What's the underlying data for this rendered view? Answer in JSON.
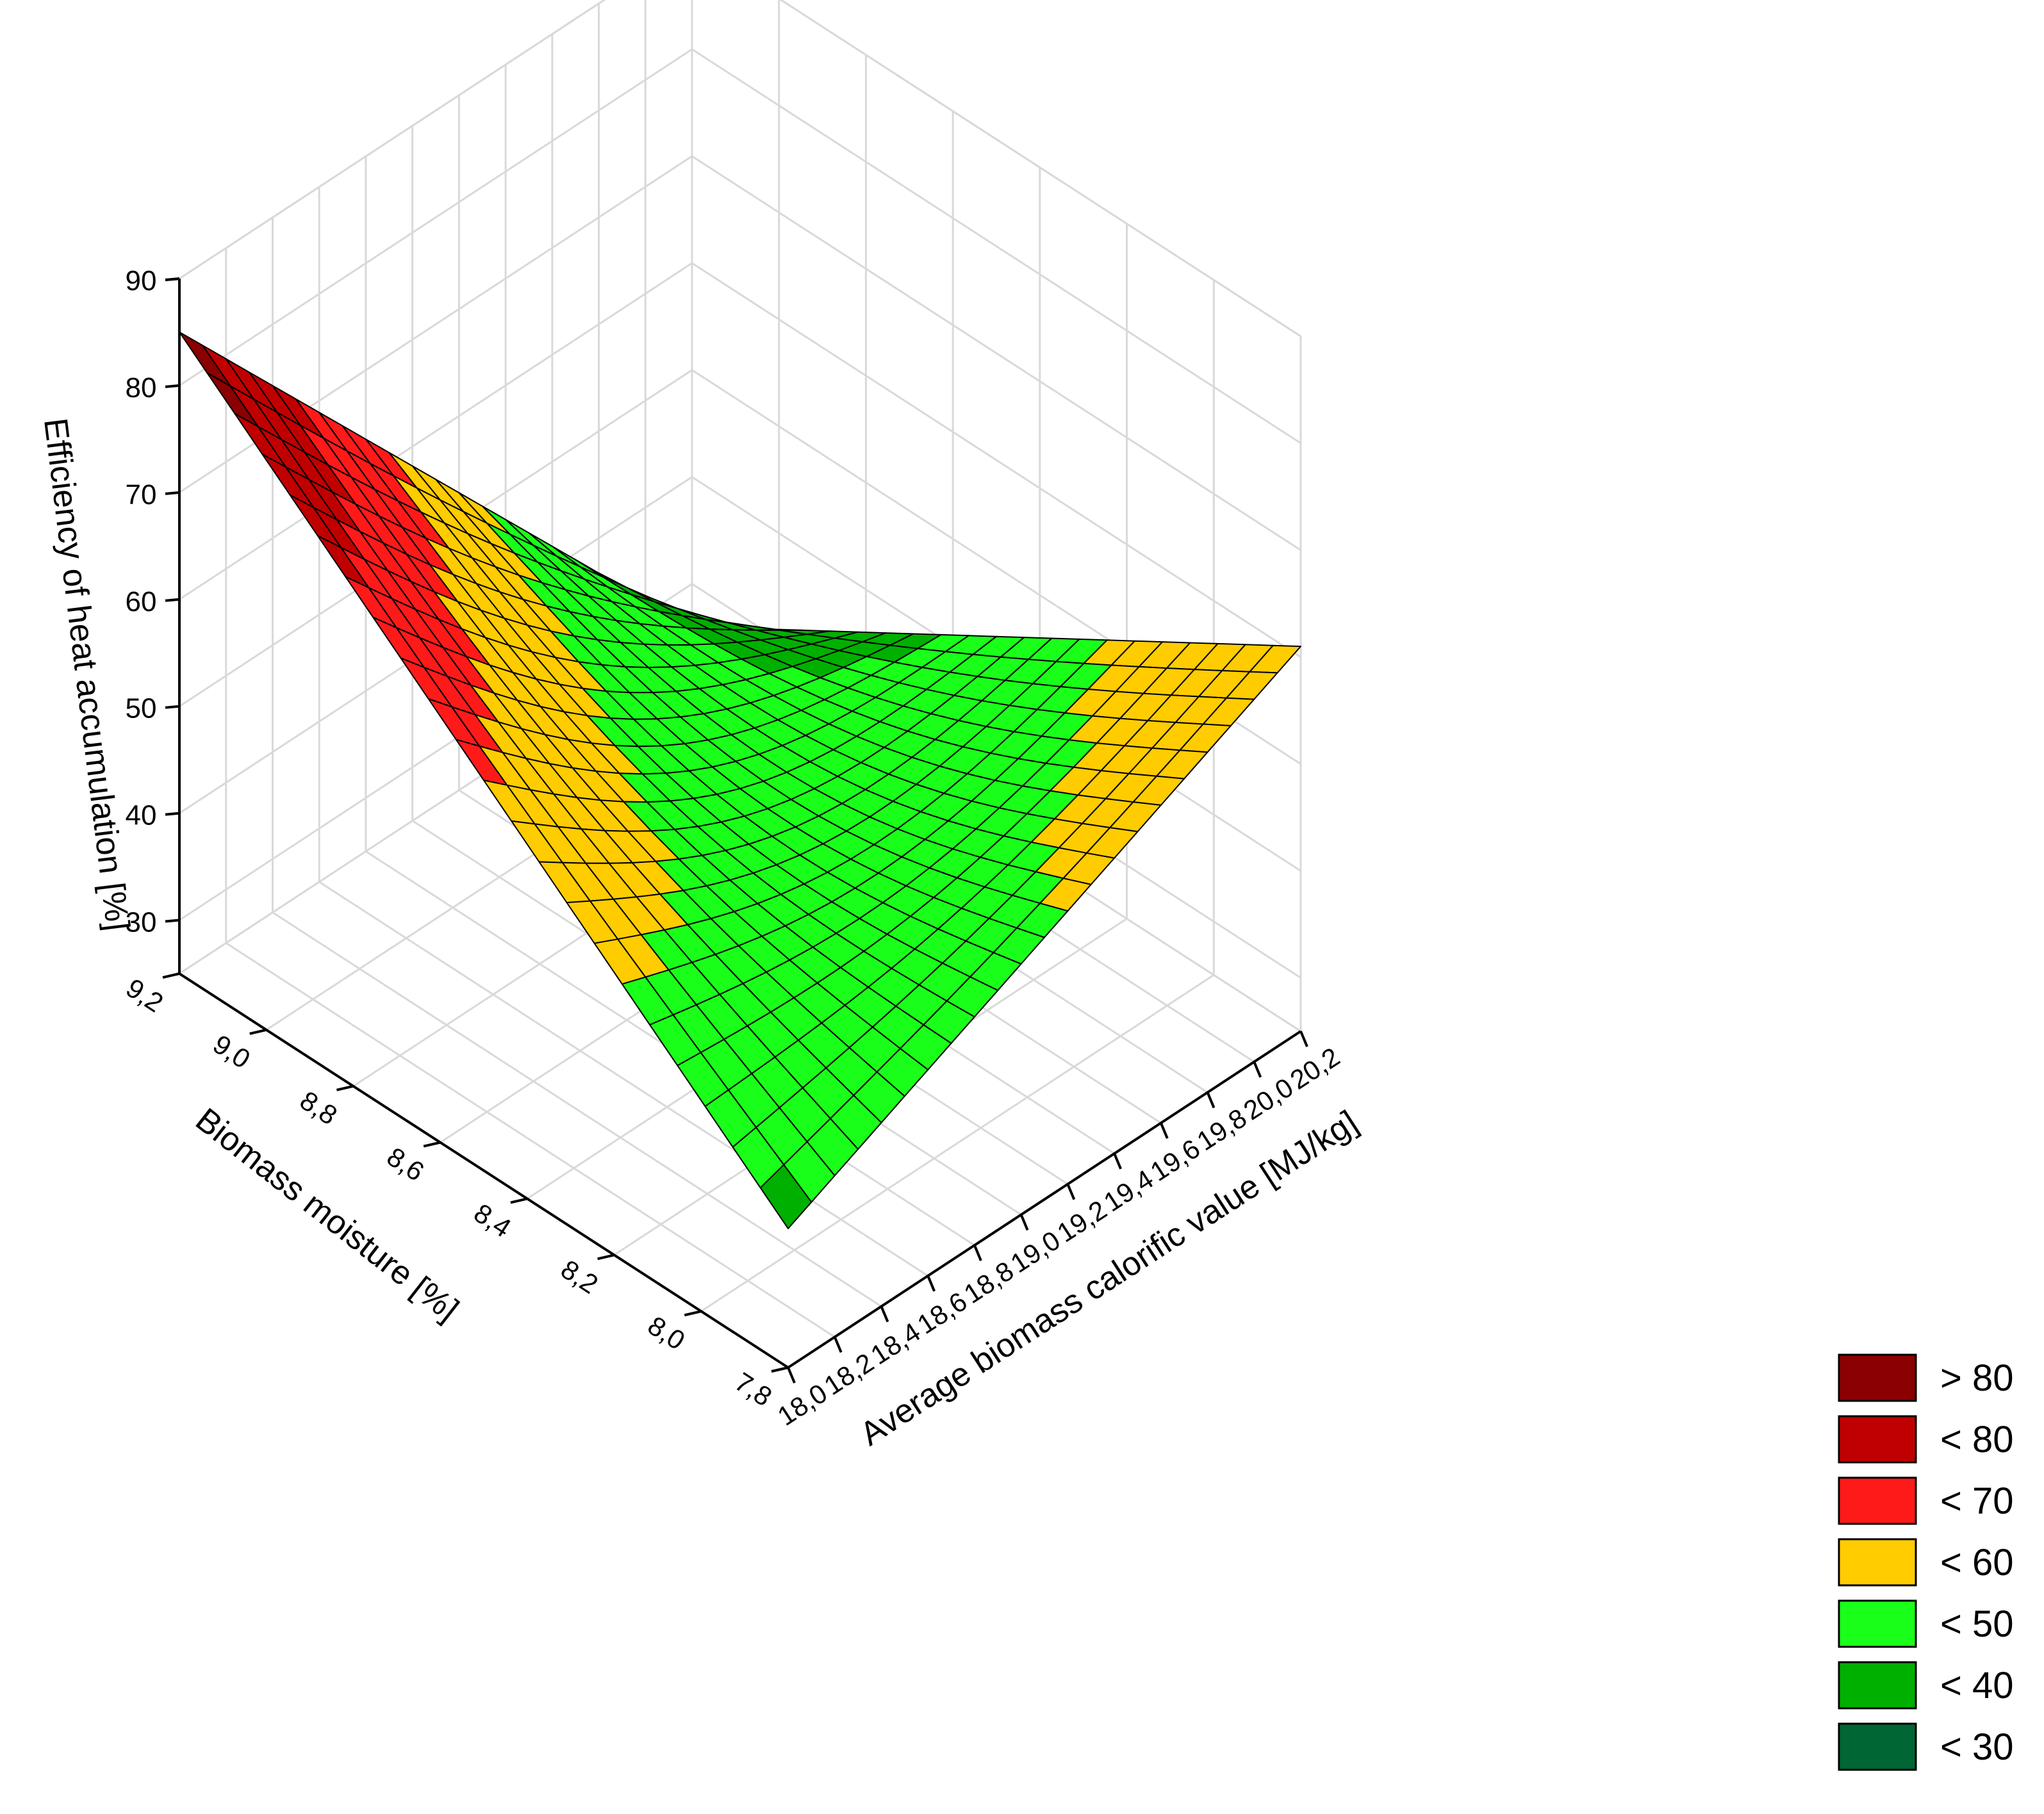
{
  "chart_data": {
    "type": "surface3d",
    "title": "",
    "x_axis": {
      "label": "Biomass moisture [%]",
      "range": [
        7.8,
        9.2
      ],
      "ticks": [
        "9,2",
        "9,0",
        "8,8",
        "8,6",
        "8,4",
        "8,2",
        "8,0",
        "7,8"
      ]
    },
    "y_axis": {
      "label": "Average biomass calorific value [MJ/kg]",
      "range": [
        18.0,
        20.2
      ],
      "ticks": [
        "18,0",
        "18,2",
        "18,4",
        "18,6",
        "18,8",
        "19,0",
        "19,2",
        "19,4",
        "19,6",
        "19,8",
        "20,0",
        "20,2"
      ]
    },
    "z_axis": {
      "label": "Efficiency of heat accumulation [%]",
      "range": [
        25,
        90
      ],
      "ticks": [
        "30",
        "40",
        "50",
        "60",
        "70",
        "80",
        "90"
      ]
    },
    "surface_corners": [
      {
        "moisture": 9.2,
        "calorific": 18.0,
        "efficiency": 85
      },
      {
        "moisture": 9.2,
        "calorific": 20.2,
        "efficiency": 26
      },
      {
        "moisture": 7.8,
        "calorific": 18.0,
        "efficiency": 38
      },
      {
        "moisture": 7.8,
        "calorific": 20.2,
        "efficiency": 61
      }
    ],
    "saddle_point": {
      "moisture": 8.5,
      "calorific": 19.1,
      "efficiency": 45
    },
    "legend": {
      "placement": "bottom-right",
      "entries": [
        {
          "label": "> 80",
          "color": "#8b0000"
        },
        {
          "label": "< 80",
          "color": "#c00000"
        },
        {
          "label": "< 70",
          "color": "#ff1a1a"
        },
        {
          "label": "< 60",
          "color": "#ffcc00"
        },
        {
          "label": "< 50",
          "color": "#1aff1a"
        },
        {
          "label": "< 40",
          "color": "#00b000"
        },
        {
          "label": "< 30",
          "color": "#006633"
        }
      ]
    },
    "grid": true
  }
}
